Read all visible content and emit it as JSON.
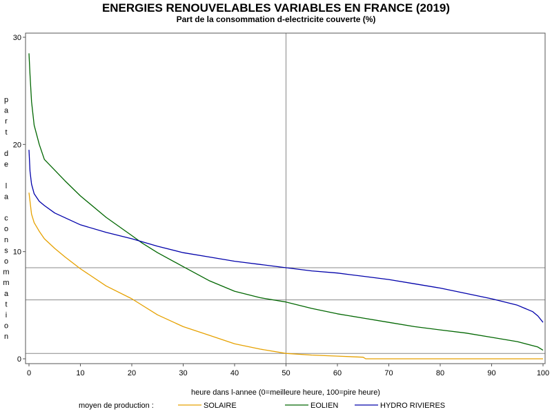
{
  "chart_data": {
    "type": "line",
    "title": "ENERGIES RENOUVELABLES VARIABLES EN FRANCE (2019)",
    "subtitle": "Part de la consommation d-electricite couverte (%)",
    "xlabel": "heure dans l-annee (0=meilleure heure, 100=pire heure)",
    "ylabel": "part de la consommation",
    "xlim": [
      0,
      100
    ],
    "ylim": [
      0,
      30
    ],
    "x_ticks": [
      0,
      10,
      20,
      30,
      40,
      50,
      60,
      70,
      80,
      90,
      100
    ],
    "y_ticks": [
      0,
      10,
      20,
      30
    ],
    "reference_lines": {
      "vertical_x": [
        50
      ],
      "horizontal_y": [
        0.5,
        5.5,
        8.5
      ]
    },
    "legend": {
      "title": "moyen de production :",
      "placement": "bottom"
    },
    "series": [
      {
        "name": "SOLAIRE",
        "color": "#E6A100",
        "x": [
          0,
          0.5,
          1,
          2,
          3,
          5,
          7,
          10,
          15,
          20,
          25,
          30,
          35,
          40,
          45,
          50,
          55,
          60,
          65,
          65.5,
          70,
          80,
          90,
          100
        ],
        "values": [
          15.5,
          13.5,
          12.7,
          11.9,
          11.2,
          10.3,
          9.5,
          8.4,
          6.8,
          5.6,
          4.1,
          3.0,
          2.2,
          1.4,
          0.9,
          0.5,
          0.35,
          0.25,
          0.15,
          0.0,
          0.0,
          0.0,
          0.0,
          0.0
        ]
      },
      {
        "name": "EOLIEN",
        "color": "#006600",
        "x": [
          0,
          0.2,
          0.5,
          1,
          2,
          3,
          5,
          7,
          10,
          15,
          20,
          22,
          25,
          30,
          35,
          40,
          45,
          50,
          55,
          60,
          65,
          70,
          75,
          80,
          85,
          90,
          95,
          99,
          100
        ],
        "values": [
          28.5,
          26.5,
          24.0,
          21.8,
          20.0,
          18.6,
          17.6,
          16.6,
          15.2,
          13.2,
          11.5,
          10.8,
          9.9,
          8.6,
          7.3,
          6.3,
          5.7,
          5.3,
          4.7,
          4.2,
          3.8,
          3.4,
          3.0,
          2.7,
          2.4,
          2.0,
          1.6,
          1.1,
          0.8
        ]
      },
      {
        "name": "HYDRO RIVIERES",
        "color": "#0000AA",
        "x": [
          0,
          0.2,
          0.5,
          1,
          2,
          3,
          5,
          10,
          15,
          20,
          25,
          30,
          35,
          40,
          45,
          50,
          55,
          60,
          65,
          70,
          75,
          80,
          85,
          90,
          95,
          98,
          99,
          100
        ],
        "values": [
          19.5,
          17.5,
          16.3,
          15.4,
          14.7,
          14.3,
          13.6,
          12.5,
          11.8,
          11.2,
          10.5,
          9.9,
          9.5,
          9.1,
          8.8,
          8.5,
          8.2,
          8.0,
          7.7,
          7.4,
          7.0,
          6.6,
          6.1,
          5.6,
          5.0,
          4.4,
          4.0,
          3.4
        ]
      }
    ]
  }
}
